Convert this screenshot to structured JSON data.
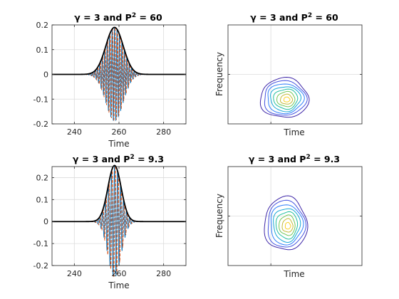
{
  "chart_data": [
    {
      "type": "line",
      "title_prefix": "γ = 3 and P",
      "title_sup": "2",
      "title_suffix": " = 60",
      "xlabel": "Time",
      "ylabel": "",
      "xlim": [
        230,
        290
      ],
      "ylim": [
        -0.2,
        0.2
      ],
      "xticks": [
        "240",
        "260",
        "280"
      ],
      "yticks": [
        "-0.2",
        "-0.1",
        "0",
        "0.1",
        "0.2"
      ],
      "grid": true,
      "envelope": {
        "center": 258,
        "peak": 0.19,
        "width": 5.5
      },
      "carrier_period": 1.1,
      "series_colors": [
        "#000000",
        "#0072BD",
        "#D95319"
      ]
    },
    {
      "type": "contour",
      "title_prefix": "γ = 3 and P",
      "title_sup": "2",
      "title_suffix": " = 60",
      "xlabel": "Time",
      "ylabel": "Frequency",
      "grid": true,
      "levels": 8,
      "blob": {
        "cx": 0.42,
        "cy": 0.74,
        "rx": 0.18,
        "ry": 0.2
      }
    },
    {
      "type": "line",
      "title_prefix": "γ = 3 and P",
      "title_sup": "2",
      "title_suffix": " = 9.3",
      "xlabel": "Time",
      "ylabel": "",
      "xlim": [
        230,
        290
      ],
      "ylim": [
        -0.2,
        0.25
      ],
      "xticks": [
        "240",
        "260",
        "280"
      ],
      "yticks": [
        "-0.2",
        "-0.1",
        "0",
        "0.1",
        "0.2"
      ],
      "grid": true,
      "envelope": {
        "center": 258,
        "peak": 0.255,
        "width": 4.2
      },
      "carrier_period": 1.35,
      "series_colors": [
        "#000000",
        "#0072BD",
        "#D95319"
      ]
    },
    {
      "type": "contour",
      "title_prefix": "γ = 3 and P",
      "title_sup": "2",
      "title_suffix": " = 9.3",
      "xlabel": "Time",
      "ylabel": "Frequency",
      "grid": true,
      "levels": 8,
      "blob": {
        "cx": 0.43,
        "cy": 0.58,
        "rx": 0.16,
        "ry": 0.27
      }
    }
  ]
}
